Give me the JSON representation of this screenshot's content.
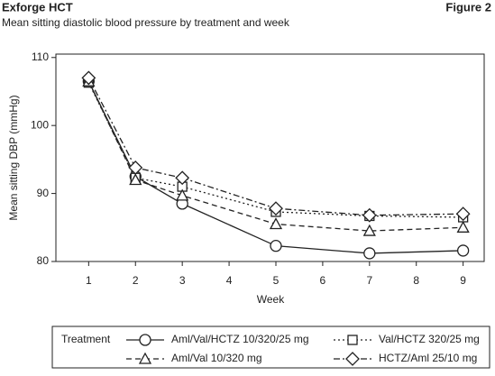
{
  "chart_data": {
    "type": "line",
    "title": "Exforge HCT",
    "figure_label": "Figure 2",
    "subtitle": "Mean sitting diastolic blood pressure by treatment and week",
    "x_label": "Week",
    "y_label": "Mean sitting DBP (mmHg)",
    "legend_title": "Treatment",
    "x": [
      1,
      2,
      3,
      5,
      7,
      9
    ],
    "xlim": [
      0.3,
      9.45
    ],
    "xticks": [
      1,
      2,
      3,
      4,
      5,
      6,
      7,
      8,
      9
    ],
    "ylim": [
      80,
      110.5
    ],
    "yticks": [
      80,
      90,
      100,
      110
    ],
    "series": [
      {
        "name": "Aml/Val/HCTZ 10/320/25 mg",
        "color": "#222222",
        "marker": "circle",
        "dash": "solid",
        "values": [
          106.5,
          92.5,
          88.5,
          82.3,
          81.2,
          81.6
        ]
      },
      {
        "name": "Val/HCTZ 320/25 mg",
        "color": "#222222",
        "marker": "square",
        "dash": "dotted",
        "values": [
          106.3,
          92.3,
          91,
          87.3,
          86.7,
          86.5
        ]
      },
      {
        "name": "Aml/Val 10/320 mg",
        "color": "#222222",
        "marker": "triangle",
        "dash": "dashed",
        "values": [
          106.5,
          92,
          89.7,
          85.5,
          84.5,
          85
        ]
      },
      {
        "name": "HCTZ/Aml 25/10 mg",
        "color": "#222222",
        "marker": "diamond",
        "dash": "dashdot",
        "values": [
          107,
          93.8,
          92.3,
          87.8,
          86.8,
          87
        ]
      }
    ]
  }
}
